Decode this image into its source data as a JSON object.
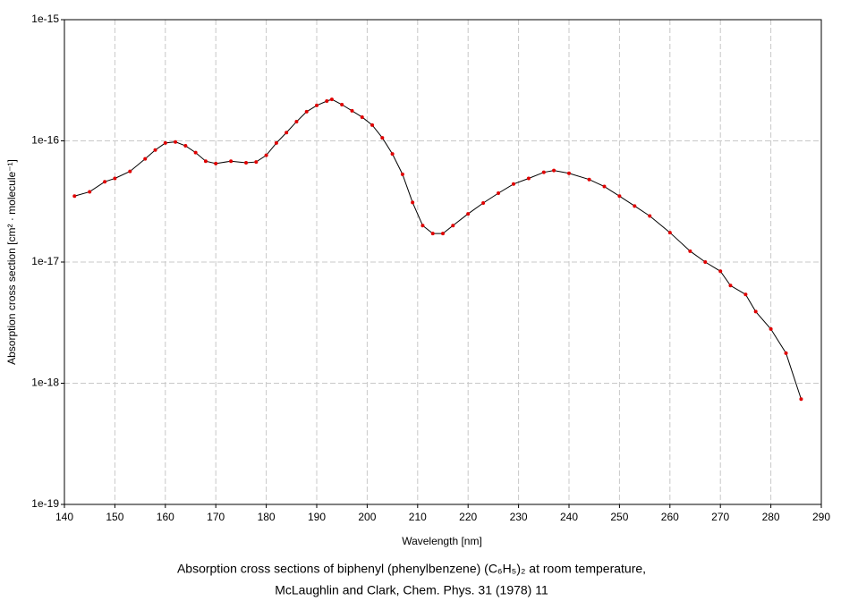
{
  "chart_data": {
    "type": "line",
    "caption": [
      "Absorption cross sections of biphenyl (phenylbenzene) (C₆H₅)₂ at room temperature,",
      "McLaughlin and Clark, Chem. Phys. 31 (1978) 11"
    ],
    "x_label": "Wavelength [nm]",
    "y_label": "Absorption cross section [cm² · molecule⁻¹]",
    "xlim": [
      140,
      290
    ],
    "xticks": [
      140,
      150,
      160,
      170,
      180,
      190,
      200,
      210,
      220,
      230,
      240,
      250,
      260,
      270,
      280,
      290
    ],
    "ylim": [
      1e-19,
      1e-15
    ],
    "yticks": [
      {
        "value": 1e-19,
        "label": "1e-19"
      },
      {
        "value": 1e-18,
        "label": "1e-18"
      },
      {
        "value": 1e-17,
        "label": "1e-17"
      },
      {
        "value": 1e-16,
        "label": "1e-16"
      },
      {
        "value": 1e-15,
        "label": "1e-15"
      }
    ],
    "y_log": true,
    "grid": true,
    "x": [
      142,
      145,
      148,
      150,
      153,
      156,
      158,
      160,
      162,
      164,
      166,
      168,
      170,
      173,
      176,
      178,
      180,
      182,
      184,
      186,
      188,
      190,
      192,
      193,
      195,
      197,
      199,
      201,
      203,
      205,
      207,
      209,
      211,
      213,
      215,
      217,
      220,
      223,
      226,
      229,
      232,
      235,
      237,
      240,
      244,
      247,
      250,
      253,
      256,
      260,
      264,
      267,
      270,
      272,
      275,
      277,
      280,
      283,
      286
    ],
    "series": [
      {
        "color": "#000000",
        "marker_color": "#e00000",
        "values": [
          3.5e-17,
          3.8e-17,
          4.6e-17,
          4.9e-17,
          5.6e-17,
          7.1e-17,
          8.4e-17,
          9.6e-17,
          9.8e-17,
          9.1e-17,
          8e-17,
          6.8e-17,
          6.5e-17,
          6.8e-17,
          6.6e-17,
          6.7e-17,
          7.6e-17,
          9.6e-17,
          1.17e-16,
          1.44e-16,
          1.74e-16,
          1.96e-16,
          2.13e-16,
          2.2e-16,
          1.99e-16,
          1.77e-16,
          1.57e-16,
          1.35e-16,
          1.06e-16,
          7.8e-17,
          5.3e-17,
          3.1e-17,
          2e-17,
          1.72e-17,
          1.72e-17,
          2e-17,
          2.5e-17,
          3.07e-17,
          3.7e-17,
          4.4e-17,
          4.9e-17,
          5.5e-17,
          5.7e-17,
          5.4e-17,
          4.8e-17,
          4.2e-17,
          3.5e-17,
          2.9e-17,
          2.4e-17,
          1.75e-17,
          1.23e-17,
          1e-17,
          8.4e-18,
          6.4e-18,
          5.4e-18,
          3.9e-18,
          2.8e-18,
          1.77e-18,
          7.4e-19
        ]
      }
    ]
  }
}
